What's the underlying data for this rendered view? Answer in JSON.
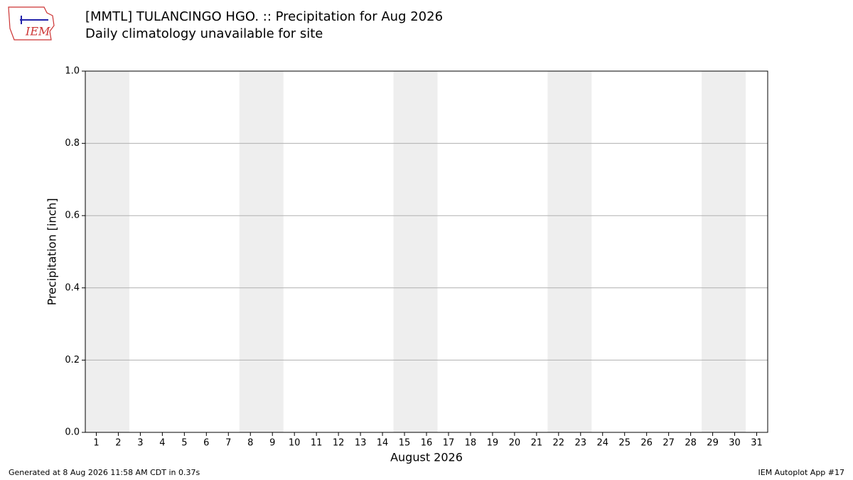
{
  "logo": "IEM",
  "footer_left": "Generated at 8 Aug 2026 11:58 AM CDT in 0.37s",
  "footer_right": "IEM Autoplot App #17",
  "chart_data": {
    "type": "bar",
    "title": "[MMTL] TULANCINGO  HGO. :: Precipitation for Aug 2026",
    "subtitle": "Daily climatology unavailable for site",
    "x_label": "August 2026",
    "y_label": "Precipitation [inch]",
    "xlim": [
      0.5,
      31.5
    ],
    "xticks": [
      1,
      2,
      3,
      4,
      5,
      6,
      7,
      8,
      9,
      10,
      11,
      12,
      13,
      14,
      15,
      16,
      17,
      18,
      19,
      20,
      21,
      22,
      23,
      24,
      25,
      26,
      27,
      28,
      29,
      30,
      31
    ],
    "ylim": [
      0,
      1
    ],
    "yticks": [
      {
        "value": 0,
        "label": "0.0"
      },
      0.2,
      0.4,
      0.6,
      0.8,
      {
        "value": 1,
        "label": "1.0"
      }
    ],
    "grid": true,
    "shaded_spans": [
      [
        0.5,
        2.5
      ],
      [
        7.5,
        9.5
      ],
      [
        14.5,
        16.5
      ],
      [
        21.5,
        23.5
      ],
      [
        28.5,
        30.5
      ]
    ],
    "shade_color": "#eeeeee"
  }
}
